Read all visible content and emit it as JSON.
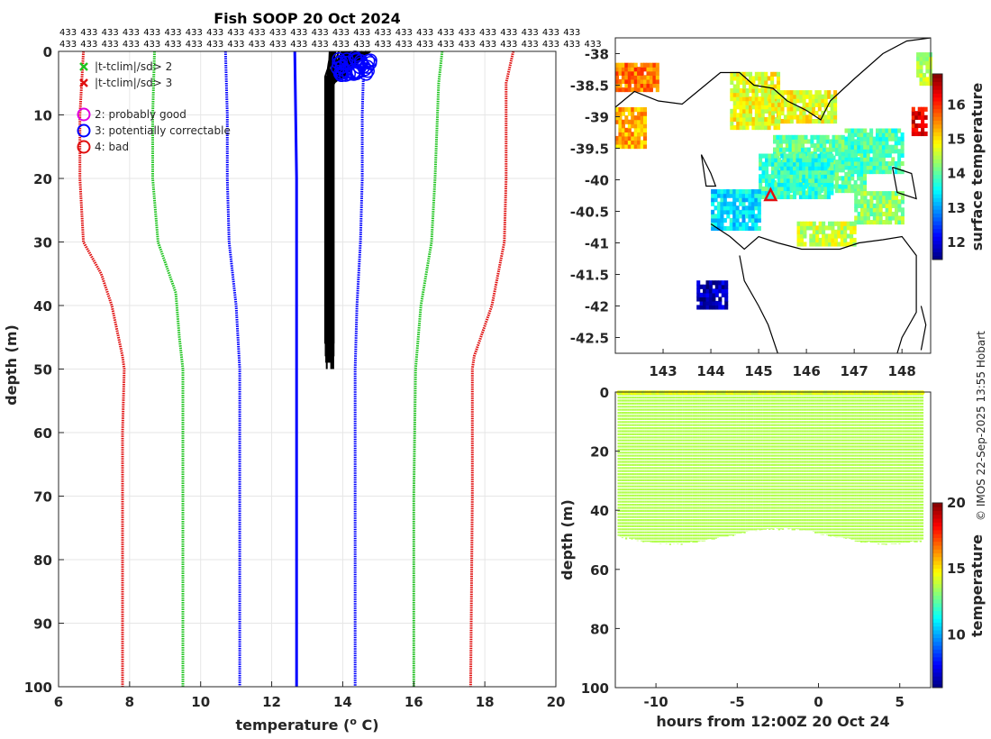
{
  "title": "Fish SOOP 20 Oct 2024",
  "credit": "© IMOS 22-Sep-2025 13:55 Hobart",
  "count_label": "433",
  "legend": [
    {
      "symbol": "x",
      "color": "#1fc41f",
      "label": "|t-tclim|/sd> 2"
    },
    {
      "symbol": "x",
      "color": "#e01010",
      "label": "|t-tclim|/sd> 3"
    },
    {
      "symbol": "o",
      "color": "#e000e0",
      "label": "2: probably good"
    },
    {
      "symbol": "o",
      "color": "#0000ff",
      "label": "3: potentially correctable"
    },
    {
      "symbol": "o",
      "color": "#e01010",
      "label": "4: bad"
    }
  ],
  "chart_data": [
    {
      "type": "line",
      "name": "profile",
      "xlabel": "temperature (o C)",
      "ylabel": "depth (m)",
      "xlim": [
        6,
        20
      ],
      "ylim": [
        100,
        0
      ],
      "xticks": [
        6,
        8,
        10,
        12,
        14,
        16,
        18,
        20
      ],
      "yticks": [
        0,
        10,
        20,
        30,
        40,
        50,
        60,
        70,
        80,
        90,
        100
      ],
      "series": [
        {
          "name": "clim -3sd",
          "color": "#e01010",
          "points": [
            [
              6.7,
              0
            ],
            [
              6.6,
              10
            ],
            [
              6.6,
              20
            ],
            [
              6.7,
              30
            ],
            [
              7.2,
              35
            ],
            [
              7.5,
              40
            ],
            [
              7.8,
              48
            ],
            [
              7.85,
              50
            ],
            [
              7.8,
              60
            ],
            [
              7.8,
              80
            ],
            [
              7.8,
              90
            ],
            [
              7.8,
              100
            ]
          ]
        },
        {
          "name": "clim -2sd",
          "color": "#1fc41f",
          "points": [
            [
              8.7,
              0
            ],
            [
              8.65,
              10
            ],
            [
              8.65,
              20
            ],
            [
              8.8,
              30
            ],
            [
              9.3,
              38
            ],
            [
              9.4,
              45
            ],
            [
              9.5,
              50
            ],
            [
              9.5,
              60
            ],
            [
              9.5,
              80
            ],
            [
              9.5,
              100
            ]
          ]
        },
        {
          "name": "clim -1sd",
          "color": "#0000ff",
          "points": [
            [
              10.7,
              0
            ],
            [
              10.75,
              10
            ],
            [
              10.75,
              20
            ],
            [
              10.8,
              30
            ],
            [
              11.0,
              40
            ],
            [
              11.1,
              50
            ],
            [
              11.1,
              70
            ],
            [
              11.1,
              100
            ]
          ]
        },
        {
          "name": "clim mean",
          "color": "#0000ff",
          "points": [
            [
              12.65,
              0
            ],
            [
              12.7,
              20
            ],
            [
              12.7,
              50
            ],
            [
              12.7,
              100
            ]
          ]
        },
        {
          "name": "clim +1sd",
          "color": "#0000ff",
          "points": [
            [
              14.6,
              0
            ],
            [
              14.55,
              10
            ],
            [
              14.55,
              20
            ],
            [
              14.5,
              30
            ],
            [
              14.4,
              40
            ],
            [
              14.35,
              50
            ],
            [
              14.35,
              70
            ],
            [
              14.35,
              100
            ]
          ]
        },
        {
          "name": "clim +2sd",
          "color": "#1fc41f",
          "points": [
            [
              16.8,
              0
            ],
            [
              16.7,
              5
            ],
            [
              16.6,
              20
            ],
            [
              16.5,
              30
            ],
            [
              16.2,
              40
            ],
            [
              16.05,
              50
            ],
            [
              16.0,
              70
            ],
            [
              16.0,
              100
            ]
          ]
        },
        {
          "name": "clim +3sd",
          "color": "#e01010",
          "points": [
            [
              18.8,
              0
            ],
            [
              18.6,
              5
            ],
            [
              18.6,
              20
            ],
            [
              18.55,
              30
            ],
            [
              18.2,
              40
            ],
            [
              17.7,
              48
            ],
            [
              17.65,
              50
            ],
            [
              17.65,
              70
            ],
            [
              17.6,
              100
            ]
          ]
        }
      ],
      "profiles": {
        "color": "#000000",
        "count": 433,
        "surface_t_range": [
          13.6,
          14.8
        ],
        "deep_t_range": [
          13.5,
          13.75
        ],
        "max_depth": 50
      },
      "flags_near_surface": {
        "color": "#0000ff",
        "t_range": [
          13.8,
          14.8
        ],
        "depth_range": [
          0,
          3
        ]
      }
    },
    {
      "type": "heatmap",
      "name": "sst_map",
      "xlim": [
        142.0,
        148.6
      ],
      "ylim": [
        -42.75,
        -37.75
      ],
      "xticks": [
        143,
        144,
        145,
        146,
        147,
        148
      ],
      "yticks": [
        -38,
        -38.5,
        -39,
        -39.5,
        -40,
        -40.5,
        -41,
        -41.5,
        -42,
        -42.5
      ],
      "colorbar": {
        "label": "surface temperature",
        "range": [
          11.5,
          16.9
        ],
        "ticks": [
          12,
          13,
          14,
          15,
          16
        ]
      },
      "track_marker": {
        "lon": 145.25,
        "lat": -40.25,
        "color": "#e01010"
      },
      "patches": [
        {
          "lon": [
            142.0,
            142.9
          ],
          "lat": [
            -38.6,
            -38.2
          ],
          "t": 15.6
        },
        {
          "lon": [
            142.0,
            142.6
          ],
          "lat": [
            -39.5,
            -38.9
          ],
          "t": 15.3
        },
        {
          "lon": [
            144.4,
            145.4
          ],
          "lat": [
            -39.2,
            -38.3
          ],
          "t": 14.8
        },
        {
          "lon": [
            145.3,
            147.2
          ],
          "lat": [
            -40.2,
            -39.3
          ],
          "t": 14.0
        },
        {
          "lon": [
            145.0,
            146.5
          ],
          "lat": [
            -40.3,
            -39.6
          ],
          "t": 13.8
        },
        {
          "lon": [
            145.2,
            146.6
          ],
          "lat": [
            -39.1,
            -38.6
          ],
          "t": 14.8
        },
        {
          "lon": [
            146.8,
            148.0
          ],
          "lat": [
            -39.9,
            -39.2
          ],
          "t": 13.9
        },
        {
          "lon": [
            144.0,
            145.0
          ],
          "lat": [
            -40.8,
            -40.2
          ],
          "t": 13.4
        },
        {
          "lon": [
            147.0,
            148.0
          ],
          "lat": [
            -40.7,
            -40.2
          ],
          "t": 14.3
        },
        {
          "lon": [
            145.8,
            147.0
          ],
          "lat": [
            -41.05,
            -40.7
          ],
          "t": 14.6
        },
        {
          "lon": [
            143.7,
            144.3
          ],
          "lat": [
            -42.05,
            -41.65
          ],
          "t": 11.8
        },
        {
          "lon": [
            148.3,
            148.6
          ],
          "lat": [
            -38.5,
            -38.0
          ],
          "t": 14.5
        },
        {
          "lon": [
            148.2,
            148.5
          ],
          "lat": [
            -39.3,
            -38.9
          ],
          "t": 16.3
        }
      ]
    },
    {
      "type": "scatter",
      "name": "depth_time",
      "xlabel": "hours from 12:00Z 20 Oct 24",
      "ylabel": "depth (m)",
      "xlim": [
        -12.5,
        6.9
      ],
      "ylim": [
        100,
        0
      ],
      "xticks": [
        -10,
        -5,
        0,
        5
      ],
      "yticks": [
        0,
        20,
        40,
        60,
        80,
        100
      ],
      "colorbar": {
        "label": "temperature",
        "range": [
          6,
          20
        ],
        "ticks": [
          10,
          15,
          20
        ]
      },
      "casts": {
        "count": 433,
        "time_range": [
          -12.3,
          6.4
        ],
        "max_depth_range": [
          46,
          51
        ],
        "t_surface": 14.0,
        "t_deep": 13.6
      }
    }
  ]
}
